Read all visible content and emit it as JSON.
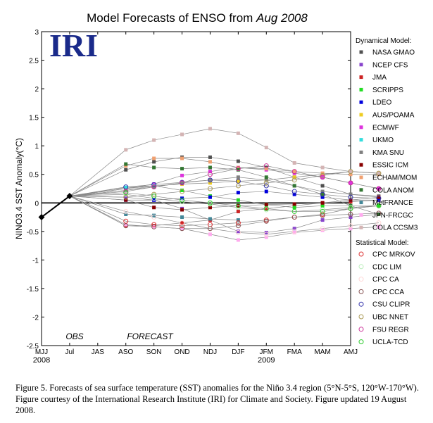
{
  "chart_data": {
    "type": "line",
    "title": "Model Forecasts of ENSO from ",
    "title_italic": "Aug 2008",
    "logo_text": "IRI",
    "ylabel": "NINO3.4 SST Anomaly(°C)",
    "xlabel": "",
    "ylim": [
      -2.5,
      3
    ],
    "yticks": [
      "-2.5",
      "-2",
      "-1.5",
      "-1",
      "-0.5",
      "0",
      "0.5",
      "1",
      "1.5",
      "2",
      "2.5",
      "3"
    ],
    "categories": [
      "MJJ",
      "Jul",
      "JAS",
      "ASO",
      "SON",
      "OND",
      "NDJ",
      "DJF",
      "JFM",
      "FMA",
      "MAM",
      "AMJ"
    ],
    "year_labels": [
      {
        "text": "2008",
        "at": 0
      },
      {
        "text": "2009",
        "at": 8
      }
    ],
    "annotations": {
      "obs": "OBS",
      "forecast": "FORECAST"
    },
    "observed": {
      "x": [
        0,
        1
      ],
      "values": [
        -0.25,
        0.12
      ],
      "color": "#000000"
    },
    "legend_headers": {
      "dynamical": "Dynamical Model:",
      "statistical": "Statistical Model:"
    },
    "dynamical_series": [
      {
        "name": "NASA GMAO",
        "color": "#505050",
        "values": [
          0.58,
          0.72,
          0.8,
          0.8,
          0.73,
          0.62,
          0.45,
          0.3,
          0.15,
          0.1
        ]
      },
      {
        "name": "NCEP CFS",
        "color": "#8844cc",
        "values": [
          0.1,
          0.05,
          -0.1,
          -0.3,
          -0.5,
          -0.52,
          -0.45,
          -0.3,
          -0.25,
          -0.2
        ]
      },
      {
        "name": "JMA",
        "color": "#cc2222",
        "values": [
          -0.4,
          -0.4,
          -0.35,
          -0.3,
          -0.15,
          -0.1,
          -0.05,
          0.0,
          0.02,
          0.05
        ]
      },
      {
        "name": "SCRIPPS",
        "color": "#22dd22",
        "values": [
          0.22,
          0.3,
          0.22,
          0.12,
          0.05,
          -0.03,
          -0.08,
          -0.05,
          -0.05,
          -0.05
        ]
      },
      {
        "name": "LDEO",
        "color": "#0000dd",
        "values": [
          0.05,
          0.05,
          0.08,
          0.1,
          0.18,
          0.2,
          0.15,
          0.1,
          0.05,
          0.05
        ]
      },
      {
        "name": "AUS/POAMA",
        "color": "#eecc22",
        "values": [
          0.25,
          0.3,
          0.33,
          0.35,
          0.38,
          0.4,
          0.45,
          0.5,
          0.55,
          0.52
        ]
      },
      {
        "name": "ECMWF",
        "color": "#dd33dd",
        "values": [
          0.25,
          0.33,
          0.48,
          0.55,
          0.62,
          0.58,
          0.52,
          0.45,
          0.35,
          0.25
        ]
      },
      {
        "name": "UKMO",
        "color": "#33dddd",
        "values": [
          0.27,
          0.3
        ]
      },
      {
        "name": "KMA SNU",
        "color": "#808080",
        "values": [
          0.22,
          0.28,
          0.35,
          0.4,
          0.45,
          0.4,
          0.3,
          0.2,
          0.15,
          0.12
        ]
      },
      {
        "name": "ESSIC ICM",
        "color": "#880000",
        "values": [
          0.05,
          -0.08,
          -0.12,
          -0.08,
          -0.05,
          -0.03,
          -0.02,
          0.0,
          0.05,
          0.1
        ]
      },
      {
        "name": "ECHAM/MOM",
        "color": "#f0a070",
        "values": [
          0.65,
          0.78,
          0.78,
          0.72,
          0.62,
          0.6,
          0.55,
          0.52,
          0.5,
          0.5
        ]
      },
      {
        "name": "COLA ANOM",
        "color": "#337733",
        "values": [
          0.68,
          0.62,
          0.6,
          0.62,
          0.58,
          0.45,
          0.3,
          0.15,
          -0.05,
          -0.2
        ]
      },
      {
        "name": "MetFRANCE",
        "color": "#448899",
        "values": [
          -0.2,
          -0.22,
          -0.25,
          -0.28,
          -0.3
        ]
      },
      {
        "name": "JPN-FRCGC",
        "color": "#ffaaee",
        "values": [
          -0.38,
          -0.42,
          -0.45,
          -0.55,
          -0.65,
          -0.6,
          -0.52,
          -0.48,
          -0.45,
          -0.42
        ]
      },
      {
        "name": "COLA CCSM3",
        "color": "#d4b4b4",
        "values": [
          0.93,
          1.1,
          1.2,
          1.3,
          1.22,
          0.97,
          0.7,
          0.62,
          0.55,
          0.52
        ]
      }
    ],
    "statistical_series": [
      {
        "name": "CPC MRKOV",
        "color": "#dd3333",
        "values": [
          -0.32,
          -0.38,
          -0.4,
          -0.38,
          -0.35,
          -0.3,
          -0.25,
          -0.2,
          -0.1,
          -0.05
        ]
      },
      {
        "name": "CDC LIM",
        "color": "#bbeebb",
        "values": [
          0.15,
          0.08,
          0.02,
          -0.02,
          -0.08,
          -0.12,
          -0.15,
          -0.12,
          -0.08,
          -0.05
        ]
      },
      {
        "name": "CPC CA",
        "color": "#ffd8d8",
        "values": [
          -0.15,
          -0.25,
          -0.35,
          -0.45,
          -0.52,
          -0.55,
          -0.5,
          -0.45,
          -0.4,
          -0.35
        ]
      },
      {
        "name": "CPC CCA",
        "color": "#885555",
        "values": [
          -0.4,
          -0.42,
          -0.45,
          -0.45,
          -0.4,
          -0.32,
          -0.25,
          -0.22,
          -0.2,
          -0.18
        ]
      },
      {
        "name": "CSU CLIPR",
        "color": "#3333aa",
        "values": [
          0.28,
          0.32,
          0.36,
          0.4,
          0.38,
          0.3,
          0.2,
          0.15,
          0.1,
          0.08
        ]
      },
      {
        "name": "UBC NNET",
        "color": "#aa9955",
        "values": [
          0.1,
          0.15,
          0.2,
          0.25,
          0.3,
          0.35,
          0.4,
          0.48,
          0.55,
          0.52
        ]
      },
      {
        "name": "FSU REGR",
        "color": "#cc3399",
        "values": [
          0.2,
          0.28,
          0.35,
          0.5,
          0.6,
          0.65,
          0.55,
          0.45,
          0.35,
          0.25
        ]
      },
      {
        "name": "UCLA-TCD",
        "color": "#33cc33",
        "values": [
          0.18,
          0.12,
          0.05,
          0.0,
          -0.05,
          -0.1,
          -0.15,
          -0.15,
          -0.1,
          -0.05
        ]
      }
    ],
    "legend_placement": "right",
    "grid": false
  },
  "caption": {
    "text": "Figure 5. Forecasts of sea surface temperature (SST) anomalies for the Niño 3.4 region (5°N-5°S, 120°W-170°W).  Figure courtesy of the International Research Institute (IRI) for Climate and Society.  Figure updated 19 August 2008."
  }
}
